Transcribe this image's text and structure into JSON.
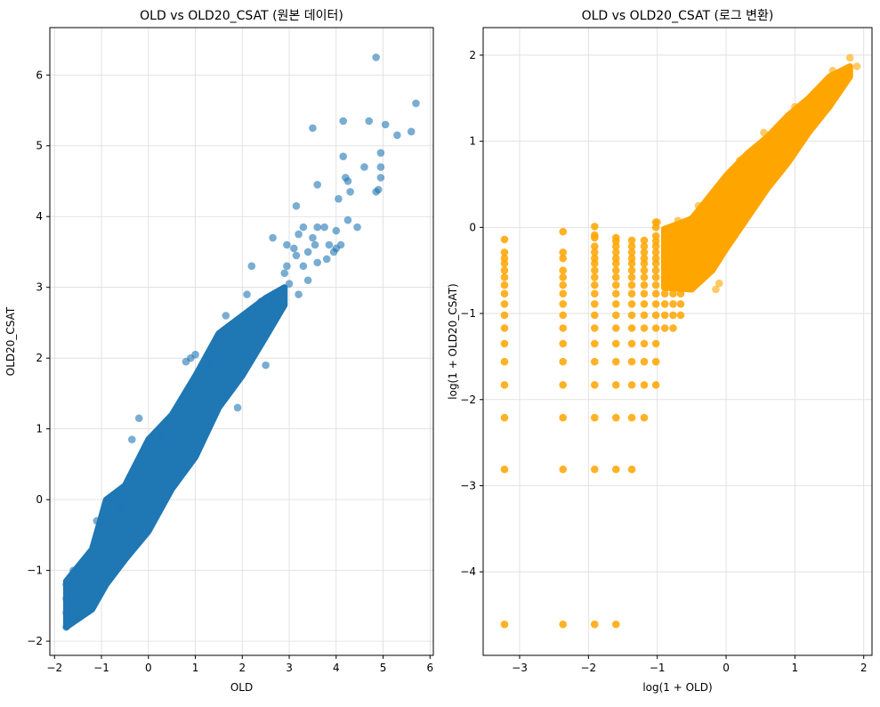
{
  "chart_data": [
    {
      "type": "scatter",
      "title": "OLD vs OLD20_CSAT (원본 데이터)",
      "xlabel": "OLD",
      "ylabel": "OLD20_CSAT",
      "xlim": [
        -2.1,
        6.07
      ],
      "ylim": [
        -2.2,
        6.67
      ],
      "xticks": [
        -2,
        -1,
        0,
        1,
        2,
        3,
        4,
        5,
        6
      ],
      "yticks": [
        -2,
        -1,
        0,
        1,
        2,
        3,
        4,
        5,
        6
      ],
      "grid": true,
      "color": "#1f77b4",
      "alpha": 0.6,
      "density_band": {
        "x": [
          -1.75,
          -1.2,
          -0.9,
          -0.5,
          0,
          0.5,
          1,
          1.5,
          2,
          2.5,
          2.9
        ],
        "y_low": [
          -1.8,
          -1.55,
          -1.2,
          -0.85,
          -0.45,
          0.15,
          0.6,
          1.3,
          1.75,
          2.3,
          2.75
        ],
        "y_high": [
          -1.15,
          -0.7,
          0.0,
          0.2,
          0.85,
          1.2,
          1.75,
          2.35,
          2.6,
          2.85,
          3.0
        ]
      },
      "points": [
        [
          4.85,
          6.25
        ],
        [
          5.7,
          5.6
        ],
        [
          4.15,
          5.35
        ],
        [
          4.7,
          5.35
        ],
        [
          3.5,
          5.25
        ],
        [
          5.05,
          5.3
        ],
        [
          5.3,
          5.15
        ],
        [
          5.6,
          5.2
        ],
        [
          4.95,
          4.9
        ],
        [
          4.15,
          4.85
        ],
        [
          4.95,
          4.7
        ],
        [
          4.6,
          4.7
        ],
        [
          4.95,
          4.55
        ],
        [
          4.2,
          4.55
        ],
        [
          3.6,
          4.45
        ],
        [
          4.25,
          4.5
        ],
        [
          4.85,
          4.35
        ],
        [
          4.9,
          4.38
        ],
        [
          4.3,
          4.35
        ],
        [
          4.05,
          4.25
        ],
        [
          3.15,
          4.15
        ],
        [
          3.3,
          3.85
        ],
        [
          3.6,
          3.85
        ],
        [
          3.75,
          3.85
        ],
        [
          4.0,
          3.8
        ],
        [
          4.25,
          3.95
        ],
        [
          4.45,
          3.85
        ],
        [
          3.2,
          3.75
        ],
        [
          3.5,
          3.7
        ],
        [
          4.1,
          3.6
        ],
        [
          3.85,
          3.6
        ],
        [
          3.55,
          3.6
        ],
        [
          3.95,
          3.5
        ],
        [
          4.0,
          3.55
        ],
        [
          3.4,
          3.5
        ],
        [
          3.1,
          3.55
        ],
        [
          2.95,
          3.6
        ],
        [
          3.15,
          3.45
        ],
        [
          3.3,
          3.3
        ],
        [
          2.95,
          3.3
        ],
        [
          3.8,
          3.4
        ],
        [
          3.6,
          3.35
        ],
        [
          2.65,
          3.7
        ],
        [
          2.2,
          3.3
        ],
        [
          3.0,
          3.05
        ],
        [
          2.9,
          3.2
        ],
        [
          3.4,
          3.1
        ],
        [
          1.0,
          2.05
        ],
        [
          0.8,
          1.95
        ],
        [
          0.9,
          2.0
        ],
        [
          1.65,
          2.6
        ],
        [
          -0.2,
          1.15
        ],
        [
          -0.35,
          0.85
        ],
        [
          -0.85,
          0.0
        ],
        [
          -1.1,
          -0.3
        ],
        [
          -1.6,
          -1.0
        ],
        [
          3.2,
          2.9
        ],
        [
          2.1,
          2.9
        ],
        [
          2.5,
          1.9
        ],
        [
          1.9,
          1.3
        ],
        [
          -1.75,
          -1.8
        ],
        [
          -1.75,
          -1.6
        ],
        [
          -1.75,
          -1.4
        ],
        [
          -1.75,
          -1.2
        ],
        [
          -0.6,
          -0.1
        ],
        [
          0.3,
          0.9
        ],
        [
          1.3,
          1.9
        ],
        [
          2.4,
          2.8
        ]
      ]
    },
    {
      "type": "scatter",
      "title": "OLD vs OLD20_CSAT (로그 변환)",
      "xlabel": "log(1 + OLD)",
      "ylabel": "log(1 + OLD20_CSAT)",
      "xlim": [
        -3.53,
        2.12
      ],
      "ylim": [
        -4.97,
        2.32
      ],
      "xticks": [
        -3,
        -2,
        -1,
        0,
        1,
        2
      ],
      "yticks": [
        -4,
        -3,
        -2,
        -1,
        0,
        1,
        2
      ],
      "grid": true,
      "color": "#ffa500",
      "alpha": 0.6,
      "discrete_columns": [
        {
          "x": -3.22,
          "levels": [
            -4.61,
            -2.81,
            -2.21,
            -1.83,
            -1.56,
            -1.35,
            -1.17,
            -1.02,
            -0.89,
            -0.77,
            -0.67,
            -0.58,
            -0.5,
            -0.42,
            -0.36,
            -0.29,
            -0.14
          ]
        },
        {
          "x": -2.37,
          "levels": [
            -4.61,
            -2.81,
            -2.21,
            -1.83,
            -1.56,
            -1.35,
            -1.17,
            -1.02,
            -0.89,
            -0.77,
            -0.67,
            -0.58,
            -0.5,
            -0.36,
            -0.29,
            -0.05
          ]
        },
        {
          "x": -1.91,
          "levels": [
            -4.61,
            -2.81,
            -2.21,
            -1.83,
            -1.56,
            -1.35,
            -1.17,
            -1.02,
            -0.89,
            -0.77,
            -0.67,
            -0.58,
            -0.5,
            -0.42,
            -0.36,
            -0.29,
            -0.22,
            -0.12,
            -0.09,
            0.01
          ]
        },
        {
          "x": -1.6,
          "levels": [
            -4.61,
            -2.81,
            -2.21,
            -1.83,
            -1.56,
            -1.35,
            -1.17,
            -1.02,
            -0.89,
            -0.77,
            -0.67,
            -0.58,
            -0.5,
            -0.42,
            -0.36,
            -0.29,
            -0.22,
            -0.16,
            -0.12
          ]
        },
        {
          "x": -1.37,
          "levels": [
            -2.81,
            -2.21,
            -1.83,
            -1.56,
            -1.35,
            -1.17,
            -1.02,
            -0.89,
            -0.77,
            -0.67,
            -0.58,
            -0.5,
            -0.42,
            -0.36,
            -0.29,
            -0.22,
            -0.15
          ]
        },
        {
          "x": -1.19,
          "levels": [
            -2.21,
            -1.83,
            -1.56,
            -1.35,
            -1.17,
            -1.02,
            -0.89,
            -0.77,
            -0.67,
            -0.58,
            -0.5,
            -0.42,
            -0.36,
            -0.29,
            -0.22,
            -0.15
          ]
        },
        {
          "x": -1.02,
          "levels": [
            -1.83,
            -1.56,
            -1.35,
            -1.17,
            -1.02,
            -0.89,
            -0.77,
            -0.67,
            -0.58,
            -0.5,
            -0.42,
            -0.36,
            -0.29,
            -0.22,
            -0.16,
            -0.1,
            0.0,
            0.06
          ]
        },
        {
          "x": -0.89,
          "levels": [
            -1.17,
            -1.02,
            -0.89,
            -0.77,
            -0.67,
            -0.58,
            -0.5,
            -0.42,
            -0.36,
            -0.29,
            -0.22
          ]
        },
        {
          "x": -0.77,
          "levels": [
            -1.17,
            -1.02,
            -0.89,
            -0.77,
            -0.67,
            -0.58
          ]
        },
        {
          "x": -0.66,
          "levels": [
            -1.02,
            -0.89,
            -0.77,
            -0.67,
            -0.58
          ]
        }
      ],
      "density_band": {
        "x": [
          -0.9,
          -0.5,
          -0.2,
          0,
          0.3,
          0.6,
          0.9,
          1.2,
          1.5,
          1.8
        ],
        "y_low": [
          -0.7,
          -0.72,
          -0.5,
          -0.25,
          0.1,
          0.45,
          0.75,
          1.1,
          1.4,
          1.75
        ],
        "y_high": [
          -0.02,
          0.1,
          0.4,
          0.6,
          0.85,
          1.05,
          1.3,
          1.5,
          1.75,
          1.87
        ]
      },
      "points": [
        [
          1.8,
          1.97
        ],
        [
          1.9,
          1.87
        ],
        [
          1.55,
          1.82
        ],
        [
          1.7,
          1.82
        ],
        [
          1.25,
          1.45
        ],
        [
          0.95,
          1.25
        ],
        [
          0.2,
          0.78
        ],
        [
          -0.1,
          0.42
        ],
        [
          -0.5,
          0.1
        ],
        [
          -0.7,
          0.08
        ],
        [
          -1.0,
          0.06
        ],
        [
          -0.15,
          -0.72
        ],
        [
          -0.3,
          -0.55
        ],
        [
          -0.1,
          -0.65
        ],
        [
          1.0,
          1.4
        ],
        [
          0.55,
          1.1
        ],
        [
          -0.4,
          0.25
        ],
        [
          -0.55,
          -0.5
        ]
      ]
    }
  ]
}
